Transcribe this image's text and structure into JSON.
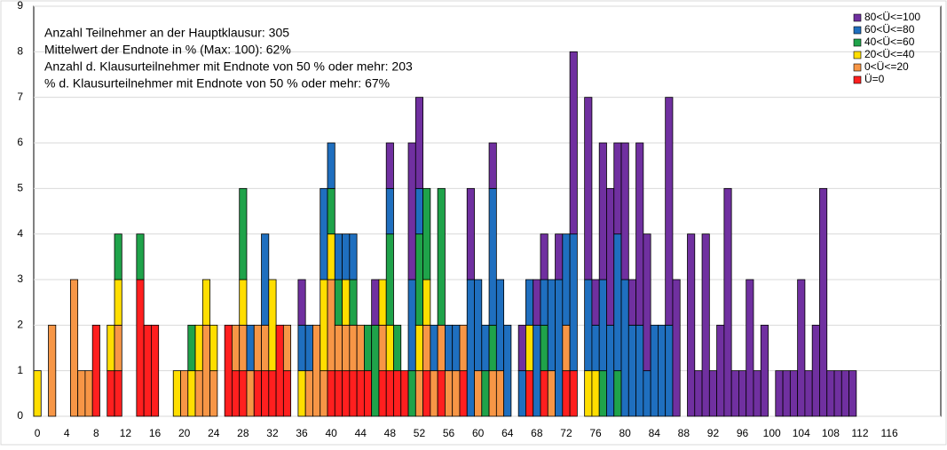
{
  "chart_data": {
    "type": "bar",
    "stacked": true,
    "annotations": [
      "Anzahl Teilnehmer an der Hauptklausur: 305",
      "Mittelwert der Endnote in % (Max: 100):  62%",
      "Anzahl d. Klausurteilnehmer mit Endnote von 50 % oder mehr: 203",
      "% d. Klausurteilnehmer mit Endnote von 50 % oder mehr: 67%"
    ],
    "x": [
      0,
      1,
      2,
      3,
      4,
      5,
      6,
      7,
      8,
      9,
      10,
      11,
      12,
      13,
      14,
      15,
      16,
      17,
      18,
      19,
      20,
      21,
      22,
      23,
      24,
      25,
      26,
      27,
      28,
      29,
      30,
      31,
      32,
      33,
      34,
      35,
      36,
      37,
      38,
      39,
      40,
      41,
      42,
      43,
      44,
      45,
      46,
      47,
      48,
      49,
      50,
      51,
      52,
      53,
      54,
      55,
      56,
      57,
      58,
      59,
      60,
      61,
      62,
      63,
      64,
      65,
      66,
      67,
      68,
      69,
      70,
      71,
      72,
      73,
      74,
      75,
      76,
      77,
      78,
      79,
      80,
      81,
      82,
      83,
      84,
      85,
      86,
      87,
      88,
      89,
      90,
      91,
      92,
      93,
      94,
      95,
      96,
      97,
      98,
      99,
      100,
      101,
      102,
      103,
      104,
      105,
      106,
      107,
      108,
      109,
      110,
      111
    ],
    "series": [
      {
        "name": "Ü=0",
        "color": "#ff1f1f",
        "values": [
          0,
          0,
          0,
          0,
          0,
          0,
          0,
          0,
          2,
          0,
          1,
          1,
          0,
          0,
          3,
          2,
          2,
          0,
          0,
          0,
          0,
          0,
          0,
          0,
          0,
          0,
          2,
          1,
          1,
          0,
          1,
          1,
          1,
          2,
          1,
          0,
          0,
          0,
          0,
          0,
          1,
          1,
          1,
          1,
          1,
          1,
          0,
          1,
          1,
          1,
          1,
          0,
          0,
          1,
          0,
          1,
          0,
          0,
          1,
          0,
          0,
          0,
          0,
          0,
          0,
          0,
          0,
          1,
          0,
          1,
          0,
          0,
          1,
          1,
          0,
          0,
          0,
          0,
          0,
          0,
          0,
          0,
          0,
          0,
          0,
          0,
          0,
          0,
          0,
          0,
          0,
          0,
          0,
          0,
          0,
          0,
          0,
          0,
          0,
          0,
          0,
          0,
          0,
          0,
          0,
          0,
          0,
          0,
          0,
          0,
          0,
          0
        ]
      },
      {
        "name": "0<Ü<=20",
        "color": "#f79646",
        "values": [
          0,
          0,
          2,
          0,
          0,
          3,
          1,
          1,
          0,
          0,
          0,
          1,
          0,
          0,
          0,
          0,
          0,
          0,
          0,
          0,
          1,
          0,
          1,
          2,
          1,
          0,
          0,
          1,
          1,
          1,
          1,
          1,
          0,
          0,
          1,
          0,
          0,
          1,
          2,
          1,
          2,
          1,
          1,
          1,
          1,
          0,
          0,
          1,
          0,
          0,
          0,
          0,
          1,
          1,
          1,
          1,
          1,
          1,
          1,
          0,
          1,
          0,
          1,
          1,
          0,
          0,
          0,
          0,
          0,
          0,
          1,
          0,
          1,
          0,
          0,
          0,
          0,
          0,
          0,
          0,
          0,
          0,
          0,
          0,
          0,
          0,
          0,
          0,
          0,
          0,
          0,
          0,
          0,
          0,
          0,
          0,
          0,
          0,
          0,
          0,
          0,
          0,
          0,
          0,
          0,
          0,
          0,
          0,
          0,
          0,
          0,
          0
        ]
      },
      {
        "name": "20<Ü<=40",
        "color": "#ffde00",
        "values": [
          1,
          0,
          0,
          0,
          0,
          0,
          0,
          0,
          0,
          0,
          1,
          1,
          0,
          0,
          0,
          0,
          0,
          0,
          0,
          1,
          0,
          1,
          1,
          1,
          1,
          0,
          0,
          0,
          1,
          0,
          0,
          0,
          2,
          0,
          0,
          0,
          1,
          0,
          0,
          2,
          1,
          0,
          1,
          0,
          0,
          0,
          0,
          1,
          1,
          0,
          0,
          0,
          1,
          1,
          0,
          0,
          0,
          0,
          0,
          0,
          0,
          0,
          0,
          0,
          0,
          0,
          0,
          1,
          0,
          0,
          0,
          0,
          0,
          0,
          0,
          1,
          1,
          0,
          0,
          0,
          0,
          0,
          0,
          0,
          0,
          0,
          0,
          0,
          0,
          0,
          0,
          0,
          0,
          0,
          0,
          0,
          0,
          0,
          0,
          0,
          0,
          0,
          0,
          0,
          0,
          0,
          0,
          0,
          0,
          0,
          0,
          0
        ]
      },
      {
        "name": "40<Ü<=60",
        "color": "#1fa34a",
        "values": [
          0,
          0,
          0,
          0,
          0,
          0,
          0,
          0,
          0,
          0,
          0,
          1,
          0,
          0,
          1,
          0,
          0,
          0,
          0,
          0,
          0,
          1,
          0,
          0,
          0,
          0,
          0,
          0,
          2,
          0,
          0,
          0,
          0,
          0,
          0,
          0,
          0,
          0,
          0,
          0,
          1,
          1,
          0,
          1,
          0,
          1,
          2,
          0,
          2,
          1,
          0,
          1,
          2,
          2,
          0,
          3,
          0,
          0,
          0,
          0,
          0,
          1,
          1,
          0,
          0,
          0,
          0,
          0,
          0,
          1,
          0,
          0,
          0,
          0,
          0,
          0,
          0,
          1,
          0,
          1,
          0,
          0,
          0,
          0,
          0,
          0,
          0,
          0,
          0,
          0,
          0,
          0,
          0,
          0,
          0,
          0,
          0,
          0,
          0,
          0,
          0,
          0,
          0,
          0,
          0,
          0,
          0,
          0,
          0,
          0,
          0,
          0
        ]
      },
      {
        "name": "60<Ü<=80",
        "color": "#1f6fbf",
        "values": [
          0,
          0,
          0,
          0,
          0,
          0,
          0,
          0,
          0,
          0,
          0,
          0,
          0,
          0,
          0,
          0,
          0,
          0,
          0,
          0,
          0,
          0,
          0,
          0,
          0,
          0,
          0,
          0,
          0,
          1,
          0,
          2,
          0,
          0,
          0,
          0,
          1,
          1,
          0,
          2,
          1,
          1,
          1,
          1,
          0,
          0,
          0,
          0,
          1,
          0,
          0,
          2,
          1,
          0,
          1,
          0,
          1,
          1,
          0,
          3,
          2,
          1,
          3,
          2,
          2,
          0,
          1,
          1,
          2,
          1,
          2,
          3,
          2,
          3,
          0,
          2,
          1,
          2,
          2,
          3,
          3,
          2,
          2,
          1,
          2,
          2,
          2,
          0,
          0,
          0,
          0,
          0,
          0,
          0,
          0,
          0,
          0,
          0,
          0,
          0,
          0,
          0,
          0,
          0,
          0,
          0,
          0,
          0,
          0,
          0,
          0,
          0
        ]
      },
      {
        "name": "80<Ü<=100",
        "color": "#7030a0",
        "values": [
          0,
          0,
          0,
          0,
          0,
          0,
          0,
          0,
          0,
          0,
          0,
          0,
          0,
          0,
          0,
          0,
          0,
          0,
          0,
          0,
          0,
          0,
          0,
          0,
          0,
          0,
          0,
          0,
          0,
          0,
          0,
          0,
          0,
          0,
          0,
          0,
          1,
          0,
          0,
          0,
          0,
          0,
          0,
          0,
          0,
          0,
          1,
          0,
          1,
          0,
          0,
          3,
          2,
          0,
          0,
          0,
          0,
          0,
          0,
          2,
          0,
          0,
          1,
          0,
          0,
          0,
          1,
          0,
          1,
          1,
          0,
          1,
          0,
          4,
          0,
          4,
          1,
          3,
          3,
          2,
          3,
          1,
          4,
          3,
          0,
          0,
          5,
          3,
          0,
          4,
          1,
          4,
          1,
          2,
          5,
          1,
          1,
          3,
          1,
          2,
          0,
          1,
          1,
          1,
          3,
          1,
          2,
          5,
          1,
          1,
          1,
          1
        ]
      }
    ],
    "xlim": [
      -0.5,
      123
    ],
    "xticks": [
      0,
      4,
      8,
      12,
      16,
      20,
      24,
      28,
      32,
      36,
      40,
      44,
      48,
      52,
      56,
      60,
      64,
      68,
      72,
      76,
      80,
      84,
      88,
      92,
      96,
      100,
      104,
      108,
      112,
      116
    ],
    "ylim": [
      0,
      9
    ],
    "yticks": [
      0,
      1,
      2,
      3,
      4,
      5,
      6,
      7,
      8,
      9
    ],
    "grid": true,
    "legend": "top-right"
  }
}
